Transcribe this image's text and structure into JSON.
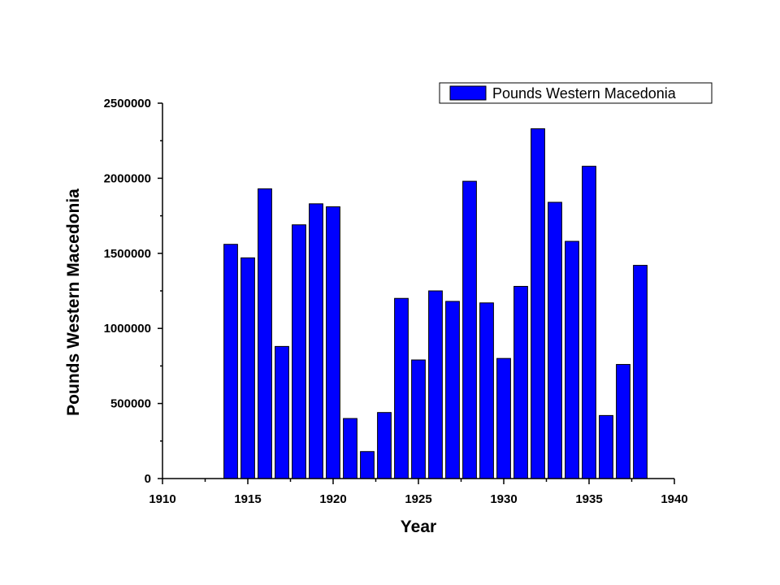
{
  "chart_data": {
    "type": "bar",
    "xlabel": "Year",
    "ylabel": "Pounds Western Macedonia",
    "xlim": [
      1910,
      1940
    ],
    "ylim": [
      0,
      2500000
    ],
    "xticks": [
      "1910",
      "1915",
      "1920",
      "1925",
      "1930",
      "1935",
      "1940"
    ],
    "yticks": [
      "0",
      "500000",
      "1000000",
      "1500000",
      "2000000",
      "2500000"
    ],
    "grid": false,
    "legend_position": "top-right",
    "bar_color": "#0000FF",
    "series": [
      {
        "name": "Pounds Western Macedonia",
        "x": [
          1914,
          1915,
          1916,
          1917,
          1918,
          1919,
          1920,
          1921,
          1922,
          1923,
          1924,
          1925,
          1926,
          1927,
          1928,
          1929,
          1930,
          1931,
          1932,
          1933,
          1934,
          1935,
          1936,
          1937,
          1938
        ],
        "values": [
          1560000,
          1470000,
          1930000,
          880000,
          1690000,
          1830000,
          1810000,
          400000,
          180000,
          440000,
          1200000,
          790000,
          1250000,
          1180000,
          1980000,
          1170000,
          800000,
          1280000,
          2330000,
          1840000,
          1580000,
          2080000,
          420000,
          760000,
          1420000
        ]
      }
    ]
  }
}
